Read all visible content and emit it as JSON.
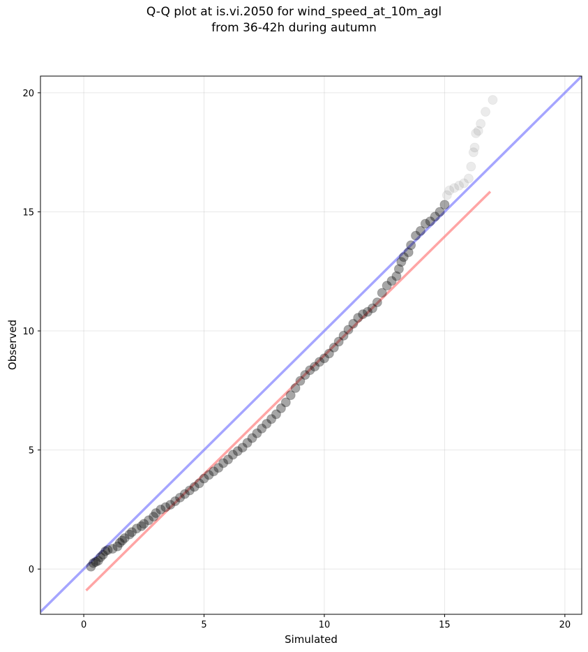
{
  "chart_data": {
    "type": "scatter",
    "title_line1": "Q-Q plot at is.vi.2050 for wind_speed_at_10m_agl",
    "title_line2": "from 36-42h during autumn",
    "xlabel": "Simulated",
    "ylabel": "Observed",
    "xlim": [
      -1.8,
      20.7
    ],
    "ylim": [
      -1.9,
      20.7
    ],
    "xticks": [
      0,
      5,
      10,
      15,
      20
    ],
    "yticks": [
      0,
      5,
      10,
      15,
      20
    ],
    "grid": true,
    "reference_lines": [
      {
        "label": "identity",
        "color": "#7f7fff",
        "x": [
          -1.8,
          20.7
        ],
        "y": [
          -1.8,
          20.7
        ]
      },
      {
        "label": "fit",
        "color": "#ff7f7f",
        "x": [
          0.1,
          16.9
        ],
        "y": [
          -0.9,
          15.85
        ]
      }
    ],
    "point_color": "#000000",
    "points": [
      [
        0.3,
        0.1
      ],
      [
        0.4,
        0.25
      ],
      [
        0.5,
        0.3
      ],
      [
        0.6,
        0.35
      ],
      [
        0.7,
        0.5
      ],
      [
        0.8,
        0.6
      ],
      [
        0.9,
        0.75
      ],
      [
        1.0,
        0.8
      ],
      [
        1.2,
        0.85
      ],
      [
        1.4,
        0.95
      ],
      [
        1.5,
        1.1
      ],
      [
        1.6,
        1.2
      ],
      [
        1.7,
        1.3
      ],
      [
        1.9,
        1.45
      ],
      [
        2.0,
        1.55
      ],
      [
        2.2,
        1.7
      ],
      [
        2.4,
        1.8
      ],
      [
        2.5,
        1.9
      ],
      [
        2.7,
        2.05
      ],
      [
        2.9,
        2.2
      ],
      [
        3.0,
        2.35
      ],
      [
        3.2,
        2.5
      ],
      [
        3.4,
        2.6
      ],
      [
        3.6,
        2.7
      ],
      [
        3.8,
        2.85
      ],
      [
        4.0,
        3.0
      ],
      [
        4.2,
        3.15
      ],
      [
        4.4,
        3.3
      ],
      [
        4.6,
        3.45
      ],
      [
        4.8,
        3.6
      ],
      [
        5.0,
        3.8
      ],
      [
        5.2,
        3.95
      ],
      [
        5.4,
        4.1
      ],
      [
        5.6,
        4.25
      ],
      [
        5.8,
        4.45
      ],
      [
        6.0,
        4.6
      ],
      [
        6.2,
        4.8
      ],
      [
        6.4,
        4.95
      ],
      [
        6.6,
        5.1
      ],
      [
        6.8,
        5.3
      ],
      [
        7.0,
        5.5
      ],
      [
        7.2,
        5.7
      ],
      [
        7.4,
        5.9
      ],
      [
        7.6,
        6.1
      ],
      [
        7.8,
        6.3
      ],
      [
        8.0,
        6.5
      ],
      [
        8.2,
        6.75
      ],
      [
        8.4,
        7.0
      ],
      [
        8.6,
        7.3
      ],
      [
        8.8,
        7.6
      ],
      [
        9.0,
        7.9
      ],
      [
        9.2,
        8.15
      ],
      [
        9.4,
        8.35
      ],
      [
        9.6,
        8.5
      ],
      [
        9.8,
        8.7
      ],
      [
        10.0,
        8.85
      ],
      [
        10.2,
        9.05
      ],
      [
        10.4,
        9.3
      ],
      [
        10.6,
        9.55
      ],
      [
        10.8,
        9.8
      ],
      [
        11.0,
        10.05
      ],
      [
        11.2,
        10.3
      ],
      [
        11.4,
        10.55
      ],
      [
        11.6,
        10.7
      ],
      [
        11.8,
        10.8
      ],
      [
        12.0,
        10.95
      ],
      [
        12.2,
        11.2
      ],
      [
        12.4,
        11.6
      ],
      [
        12.6,
        11.9
      ],
      [
        12.8,
        12.1
      ],
      [
        13.0,
        12.3
      ],
      [
        13.1,
        12.6
      ],
      [
        13.2,
        12.9
      ],
      [
        13.3,
        13.1
      ],
      [
        13.5,
        13.3
      ],
      [
        13.6,
        13.6
      ],
      [
        13.8,
        14.0
      ],
      [
        14.0,
        14.2
      ],
      [
        14.2,
        14.5
      ],
      [
        14.4,
        14.6
      ],
      [
        14.6,
        14.8
      ],
      [
        14.8,
        15.0
      ],
      [
        15.0,
        15.3
      ],
      [
        15.1,
        15.7
      ],
      [
        15.2,
        15.9
      ],
      [
        15.4,
        16.0
      ],
      [
        15.6,
        16.1
      ],
      [
        15.8,
        16.2
      ],
      [
        16.0,
        16.4
      ],
      [
        16.1,
        16.9
      ],
      [
        16.2,
        17.5
      ],
      [
        16.25,
        17.7
      ],
      [
        16.3,
        18.3
      ],
      [
        16.4,
        18.4
      ],
      [
        16.5,
        18.7
      ],
      [
        16.7,
        19.2
      ],
      [
        17.0,
        19.7
      ]
    ]
  }
}
